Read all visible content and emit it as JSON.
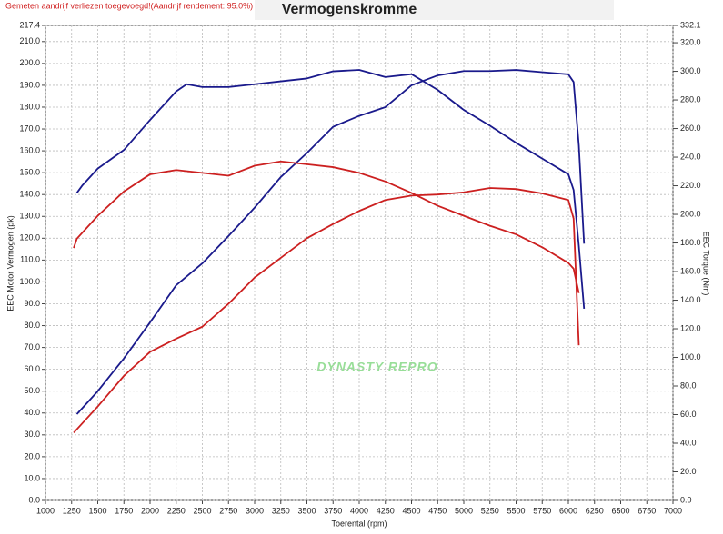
{
  "chart_data": {
    "type": "line",
    "title": "Vermogenskromme",
    "note": "Gemeten aandrijf verliezen toegevoegd!(Aandrijf rendement: 95.0%)",
    "xlabel": "Toerental (rpm)",
    "ylabel": "EEC Motor Vermogen (pk)",
    "y2label": "EEC Torque (Nm)",
    "watermark": "DYNASTY REPRO",
    "grid": true,
    "xlim": [
      1000,
      7000
    ],
    "xticks": [
      1000,
      1250,
      1500,
      1750,
      2000,
      2250,
      2500,
      2750,
      3000,
      3250,
      3500,
      3750,
      4000,
      4250,
      4500,
      4750,
      5000,
      5250,
      5500,
      5750,
      6000,
      6250,
      6500,
      6750,
      7000
    ],
    "ylim": [
      0,
      217.4
    ],
    "yticks": [
      {
        "value": 0,
        "label": "0.0"
      },
      {
        "value": 10,
        "label": "10.0"
      },
      {
        "value": 20,
        "label": "20.0"
      },
      {
        "value": 30,
        "label": "30.0"
      },
      {
        "value": 40,
        "label": "40.0"
      },
      {
        "value": 50,
        "label": "50.0"
      },
      {
        "value": 60,
        "label": "60.0"
      },
      {
        "value": 70,
        "label": "70.0"
      },
      {
        "value": 80,
        "label": "80.0"
      },
      {
        "value": 90,
        "label": "90.0"
      },
      {
        "value": 100,
        "label": "100.0"
      },
      {
        "value": 110,
        "label": "110.0"
      },
      {
        "value": 120,
        "label": "120.0"
      },
      {
        "value": 130,
        "label": "130.0"
      },
      {
        "value": 140,
        "label": "140.0"
      },
      {
        "value": 150,
        "label": "150.0"
      },
      {
        "value": 160,
        "label": "160.0"
      },
      {
        "value": 170,
        "label": "170.0"
      },
      {
        "value": 180,
        "label": "180.0"
      },
      {
        "value": 190,
        "label": "190.0"
      },
      {
        "value": 200,
        "label": "200.0"
      },
      {
        "value": 210,
        "label": "210.0"
      },
      217.4
    ],
    "y2lim": [
      0,
      332.1
    ],
    "y2ticks": [
      {
        "value": 0,
        "label": "0.0"
      },
      {
        "value": 20,
        "label": "20.0"
      },
      {
        "value": 40,
        "label": "40.0"
      },
      {
        "value": 60,
        "label": "60.0"
      },
      {
        "value": 80,
        "label": "80.0"
      },
      {
        "value": 100,
        "label": "100.0"
      },
      {
        "value": 120,
        "label": "120.0"
      },
      {
        "value": 140,
        "label": "140.0"
      },
      {
        "value": 160,
        "label": "160.0"
      },
      {
        "value": 180,
        "label": "180.0"
      },
      {
        "value": 200,
        "label": "200.0"
      },
      {
        "value": 220,
        "label": "220.0"
      },
      {
        "value": 240,
        "label": "240.0"
      },
      {
        "value": 260,
        "label": "260.0"
      },
      {
        "value": 280,
        "label": "280.0"
      },
      {
        "value": 300,
        "label": "300.0"
      },
      {
        "value": 320,
        "label": "320.0"
      },
      332.1
    ],
    "series": [
      {
        "color": "#1a1a8c",
        "axis": "y2",
        "x": [
          1300,
          1350,
          1500,
          1750,
          2000,
          2250,
          2350,
          2500,
          2750,
          3000,
          3250,
          3500,
          3750,
          4000,
          4250,
          4500,
          4750,
          5000,
          5250,
          5500,
          5750,
          6000,
          6050,
          6100,
          6150
        ],
        "values": [
          215,
          220,
          232,
          245,
          266,
          286,
          291,
          289,
          289,
          291,
          293,
          295,
          300,
          301,
          296,
          298,
          287,
          273,
          262,
          250,
          239,
          228,
          217,
          178,
          134
        ]
      },
      {
        "color": "#1a1a8c",
        "x": [
          1300,
          1500,
          1750,
          2000,
          2250,
          2500,
          2750,
          3000,
          3250,
          3500,
          3750,
          4000,
          4250,
          4500,
          4750,
          5000,
          5250,
          5500,
          5750,
          6000,
          6050,
          6100,
          6150
        ],
        "values": [
          39.5,
          50,
          65,
          81.5,
          98.5,
          108.5,
          121,
          134,
          148,
          159,
          171,
          176,
          180,
          190,
          194.5,
          196.5,
          196.5,
          197,
          196,
          195,
          191.5,
          162.5,
          117.5
        ]
      },
      {
        "color": "#cc2020",
        "axis": "y2",
        "x": [
          1270,
          1300,
          1500,
          1750,
          2000,
          2250,
          2500,
          2750,
          3000,
          3250,
          3500,
          3750,
          4000,
          4250,
          4500,
          4750,
          5000,
          5250,
          5500,
          5750,
          6000,
          6050,
          6100
        ],
        "values": [
          176.5,
          183,
          199,
          216,
          228,
          231,
          229,
          227,
          234,
          237,
          235,
          233,
          229,
          223,
          215,
          206,
          199,
          192,
          186,
          177,
          166,
          162,
          145
        ]
      },
      {
        "color": "#cc2020",
        "x": [
          1270,
          1500,
          1750,
          2000,
          2250,
          2500,
          2750,
          3000,
          3250,
          3500,
          3750,
          4000,
          4250,
          4500,
          4750,
          5000,
          5250,
          5500,
          5750,
          6000,
          6050,
          6100
        ],
        "values": [
          31,
          43,
          57,
          68,
          74,
          79.5,
          90,
          102,
          111,
          120,
          126.5,
          132.5,
          137.5,
          139.5,
          140,
          141,
          143,
          142.5,
          140.5,
          137.5,
          129,
          71
        ]
      }
    ]
  }
}
